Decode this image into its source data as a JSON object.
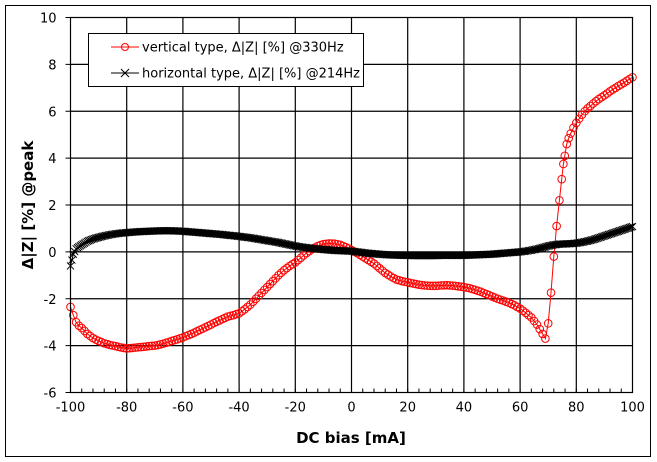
{
  "chart_data": {
    "type": "line",
    "title": "",
    "xlabel": "DC bias [mA]",
    "ylabel": "Δ|Z| [%] @peak",
    "xlim": [
      -100,
      100
    ],
    "ylim": [
      -6,
      10
    ],
    "xticks": [
      "-100",
      "-80",
      "-60",
      "-40",
      "-20",
      "0",
      "20",
      "40",
      "60",
      "80",
      "100"
    ],
    "yticks": [
      "-6",
      "-4",
      "-2",
      "0",
      "2",
      "4",
      "6",
      "8",
      "10"
    ],
    "grid": true,
    "legend_position": "top-left",
    "series": [
      {
        "name": "vertical type, Δ|Z| [%] @330Hz",
        "color": "#FF0000",
        "marker": "circle",
        "x": [
          -100,
          -99,
          -98,
          -97,
          -96,
          -94,
          -92,
          -90,
          -88,
          -86,
          -84,
          -82,
          -80,
          -78,
          -76,
          -74,
          -72,
          -70,
          -68,
          -66,
          -64,
          -62,
          -60,
          -58,
          -56,
          -54,
          -52,
          -50,
          -48,
          -46,
          -44,
          -42,
          -40,
          -38,
          -36,
          -34,
          -32,
          -30,
          -28,
          -26,
          -24,
          -22,
          -20,
          -18,
          -16,
          -14,
          -12,
          -10,
          -8,
          -6,
          -4,
          -2,
          0,
          2,
          4,
          6,
          8,
          10,
          12,
          14,
          16,
          18,
          20,
          22,
          24,
          26,
          28,
          30,
          32,
          34,
          36,
          38,
          40,
          42,
          44,
          46,
          48,
          50,
          52,
          54,
          56,
          58,
          60,
          62,
          64,
          65,
          66,
          67,
          68,
          69,
          70,
          71,
          72,
          73,
          74,
          74.8,
          75.4,
          75.9,
          76.6,
          77.3,
          78,
          79,
          80,
          81,
          82,
          83,
          84,
          85,
          86,
          87,
          88,
          89,
          90,
          91,
          92,
          93,
          94,
          95,
          96,
          97,
          98,
          99,
          100
        ],
        "y": [
          -2.35,
          -2.7,
          -3.0,
          -3.15,
          -3.25,
          -3.5,
          -3.68,
          -3.8,
          -3.9,
          -3.97,
          -4.02,
          -4.08,
          -4.12,
          -4.1,
          -4.07,
          -4.05,
          -4.02,
          -4.0,
          -3.95,
          -3.88,
          -3.8,
          -3.73,
          -3.65,
          -3.55,
          -3.45,
          -3.33,
          -3.22,
          -3.1,
          -2.98,
          -2.87,
          -2.76,
          -2.7,
          -2.62,
          -2.45,
          -2.25,
          -2.0,
          -1.75,
          -1.5,
          -1.25,
          -1.0,
          -0.78,
          -0.6,
          -0.45,
          -0.25,
          -0.05,
          0.12,
          0.25,
          0.33,
          0.36,
          0.35,
          0.3,
          0.2,
          0.08,
          -0.05,
          -0.2,
          -0.35,
          -0.5,
          -0.7,
          -0.9,
          -1.05,
          -1.18,
          -1.25,
          -1.3,
          -1.35,
          -1.4,
          -1.43,
          -1.45,
          -1.45,
          -1.43,
          -1.42,
          -1.44,
          -1.47,
          -1.5,
          -1.55,
          -1.62,
          -1.7,
          -1.8,
          -1.9,
          -2.0,
          -2.08,
          -2.17,
          -2.28,
          -2.42,
          -2.6,
          -2.8,
          -2.95,
          -3.1,
          -3.3,
          -3.5,
          -3.7,
          -3.05,
          -1.74,
          -0.2,
          1.1,
          2.2,
          3.1,
          3.75,
          4.1,
          4.6,
          4.85,
          5.05,
          5.3,
          5.5,
          5.68,
          5.85,
          6.0,
          6.12,
          6.22,
          6.33,
          6.43,
          6.52,
          6.6,
          6.68,
          6.76,
          6.85,
          6.93,
          7.0,
          7.08,
          7.15,
          7.22,
          7.3,
          7.38,
          7.45
        ]
      },
      {
        "name": "horizontal type, Δ|Z| [%] @214Hz",
        "color": "#000000",
        "marker": "x",
        "x": [
          -100,
          -99,
          -98,
          -97,
          -96,
          -94,
          -92,
          -90,
          -88,
          -86,
          -84,
          -82,
          -80,
          -78,
          -76,
          -74,
          -72,
          -70,
          -68,
          -66,
          -64,
          -62,
          -60,
          -58,
          -56,
          -54,
          -52,
          -50,
          -48,
          -46,
          -44,
          -42,
          -40,
          -38,
          -36,
          -34,
          -32,
          -30,
          -28,
          -26,
          -24,
          -22,
          -20,
          -18,
          -16,
          -14,
          -12,
          -10,
          -8,
          -6,
          -4,
          -2,
          0,
          2,
          4,
          6,
          8,
          10,
          12,
          14,
          16,
          18,
          20,
          22,
          24,
          26,
          28,
          30,
          32,
          34,
          36,
          38,
          40,
          42,
          44,
          46,
          48,
          50,
          52,
          54,
          56,
          58,
          60,
          62,
          64,
          66,
          68,
          70,
          72,
          74,
          76,
          78,
          80,
          82,
          84,
          86,
          88,
          90,
          92,
          94,
          96,
          98,
          100
        ],
        "y": [
          -0.6,
          -0.1,
          0.13,
          0.22,
          0.3,
          0.45,
          0.55,
          0.62,
          0.68,
          0.73,
          0.77,
          0.8,
          0.82,
          0.84,
          0.86,
          0.87,
          0.88,
          0.89,
          0.9,
          0.9,
          0.9,
          0.89,
          0.88,
          0.86,
          0.84,
          0.82,
          0.8,
          0.78,
          0.76,
          0.74,
          0.71,
          0.69,
          0.66,
          0.63,
          0.6,
          0.56,
          0.52,
          0.48,
          0.44,
          0.4,
          0.35,
          0.3,
          0.25,
          0.21,
          0.18,
          0.15,
          0.12,
          0.1,
          0.08,
          0.06,
          0.05,
          0.04,
          0.03,
          0.0,
          -0.03,
          -0.06,
          -0.08,
          -0.1,
          -0.12,
          -0.13,
          -0.14,
          -0.15,
          -0.15,
          -0.16,
          -0.16,
          -0.16,
          -0.16,
          -0.16,
          -0.15,
          -0.15,
          -0.15,
          -0.15,
          -0.15,
          -0.14,
          -0.13,
          -0.12,
          -0.11,
          -0.1,
          -0.08,
          -0.06,
          -0.04,
          -0.02,
          0.0,
          0.03,
          0.07,
          0.12,
          0.18,
          0.25,
          0.3,
          0.33,
          0.34,
          0.35,
          0.37,
          0.41,
          0.46,
          0.52,
          0.6,
          0.68,
          0.76,
          0.84,
          0.92,
          1.0,
          1.08
        ]
      }
    ]
  }
}
